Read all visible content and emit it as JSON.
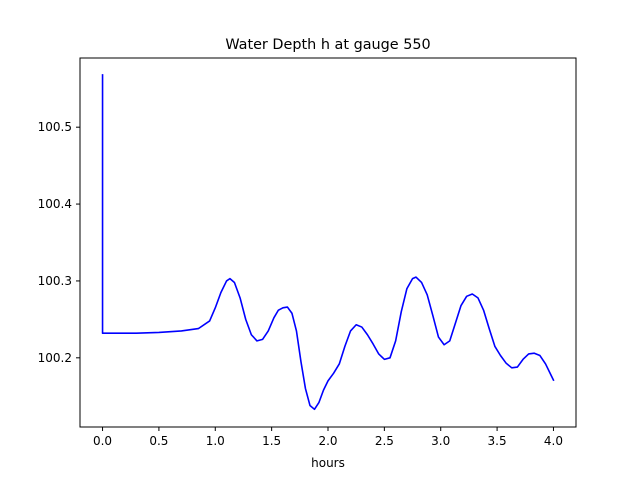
{
  "chart_data": {
    "type": "line",
    "title": "Water Depth h at gauge 550",
    "xlabel": "hours",
    "ylabel": "",
    "xlim": [
      -0.2,
      4.2
    ],
    "ylim": [
      100.11,
      100.59
    ],
    "grid": false,
    "legend": "none",
    "xticks": [
      0.0,
      0.5,
      1.0,
      1.5,
      2.0,
      2.5,
      3.0,
      3.5,
      4.0
    ],
    "xtick_labels": [
      "0.0",
      "0.5",
      "1.0",
      "1.5",
      "2.0",
      "2.5",
      "3.0",
      "3.5",
      "4.0"
    ],
    "yticks": [
      100.2,
      100.3,
      100.4,
      100.5
    ],
    "ytick_labels": [
      "100.2",
      "100.3",
      "100.4",
      "100.5"
    ],
    "series": [
      {
        "color": "#0000ff",
        "points": [
          [
            0.0,
            100.568
          ],
          [
            0.0,
            100.232
          ],
          [
            0.1,
            100.232
          ],
          [
            0.3,
            100.232
          ],
          [
            0.5,
            100.233
          ],
          [
            0.7,
            100.235
          ],
          [
            0.85,
            100.238
          ],
          [
            0.95,
            100.248
          ],
          [
            1.0,
            100.265
          ],
          [
            1.05,
            100.285
          ],
          [
            1.1,
            100.3
          ],
          [
            1.13,
            100.303
          ],
          [
            1.17,
            100.298
          ],
          [
            1.22,
            100.278
          ],
          [
            1.27,
            100.25
          ],
          [
            1.32,
            100.23
          ],
          [
            1.37,
            100.222
          ],
          [
            1.42,
            100.224
          ],
          [
            1.47,
            100.235
          ],
          [
            1.52,
            100.252
          ],
          [
            1.56,
            100.262
          ],
          [
            1.6,
            100.265
          ],
          [
            1.64,
            100.266
          ],
          [
            1.68,
            100.258
          ],
          [
            1.72,
            100.235
          ],
          [
            1.76,
            100.195
          ],
          [
            1.8,
            100.16
          ],
          [
            1.84,
            100.138
          ],
          [
            1.88,
            100.133
          ],
          [
            1.92,
            100.142
          ],
          [
            1.96,
            100.158
          ],
          [
            2.0,
            100.17
          ],
          [
            2.05,
            100.18
          ],
          [
            2.1,
            100.192
          ],
          [
            2.15,
            100.215
          ],
          [
            2.2,
            100.235
          ],
          [
            2.25,
            100.243
          ],
          [
            2.3,
            100.24
          ],
          [
            2.35,
            100.23
          ],
          [
            2.4,
            100.218
          ],
          [
            2.45,
            100.205
          ],
          [
            2.5,
            100.198
          ],
          [
            2.55,
            100.2
          ],
          [
            2.6,
            100.222
          ],
          [
            2.65,
            100.26
          ],
          [
            2.7,
            100.29
          ],
          [
            2.75,
            100.303
          ],
          [
            2.78,
            100.305
          ],
          [
            2.83,
            100.298
          ],
          [
            2.88,
            100.282
          ],
          [
            2.93,
            100.255
          ],
          [
            2.98,
            100.227
          ],
          [
            3.03,
            100.217
          ],
          [
            3.08,
            100.222
          ],
          [
            3.13,
            100.245
          ],
          [
            3.18,
            100.268
          ],
          [
            3.23,
            100.28
          ],
          [
            3.28,
            100.283
          ],
          [
            3.33,
            100.278
          ],
          [
            3.38,
            100.262
          ],
          [
            3.43,
            100.238
          ],
          [
            3.48,
            100.215
          ],
          [
            3.53,
            100.203
          ],
          [
            3.58,
            100.193
          ],
          [
            3.63,
            100.187
          ],
          [
            3.68,
            100.188
          ],
          [
            3.73,
            100.198
          ],
          [
            3.78,
            100.205
          ],
          [
            3.83,
            100.206
          ],
          [
            3.88,
            100.203
          ],
          [
            3.93,
            100.192
          ],
          [
            3.98,
            100.177
          ],
          [
            4.0,
            100.171
          ]
        ]
      }
    ]
  }
}
